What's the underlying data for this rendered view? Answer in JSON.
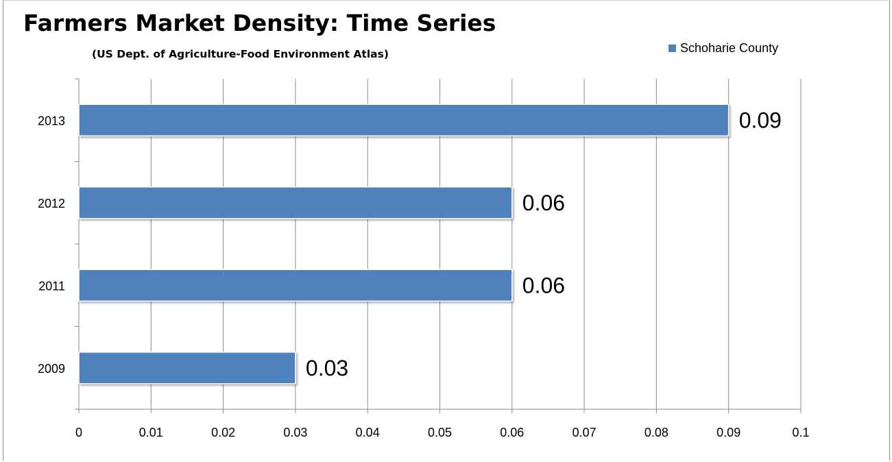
{
  "chart_data": {
    "type": "bar",
    "orientation": "horizontal",
    "title": "Farmers Market Density: Time Series",
    "subtitle": "(US Dept. of Agriculture-Food Environment Atlas)",
    "categories": [
      "2009",
      "2011",
      "2012",
      "2013"
    ],
    "series": [
      {
        "name": "Schoharie County",
        "values": [
          0.03,
          0.06,
          0.06,
          0.09
        ],
        "color": "#4f81bd"
      }
    ],
    "data_labels": [
      "0.03",
      "0.06",
      "0.06",
      "0.09"
    ],
    "x_ticks": [
      "0",
      "0.01",
      "0.02",
      "0.03",
      "0.04",
      "0.05",
      "0.06",
      "0.07",
      "0.08",
      "0.09",
      "0.1"
    ],
    "xlim": [
      0,
      0.1
    ],
    "xlabel": "",
    "ylabel": "",
    "grid": "vertical",
    "legend_position": "top-right"
  }
}
